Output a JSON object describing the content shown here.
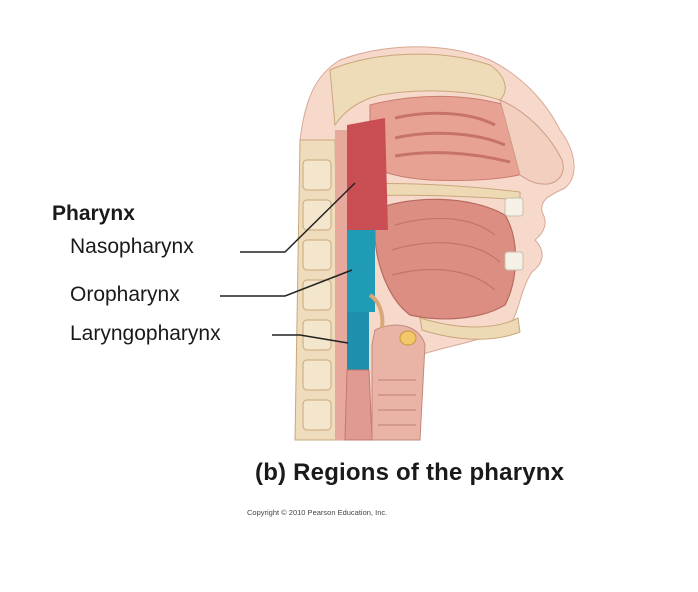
{
  "figure": {
    "heading": "Pharynx",
    "regions": [
      {
        "name": "Nasopharynx",
        "color": "#c94f55"
      },
      {
        "name": "Oropharynx",
        "color": "#1f9bb5"
      },
      {
        "name": "Laryngopharynx",
        "color": "#1f8fae"
      }
    ],
    "caption": "(b) Regions of the pharynx",
    "copyright": "Copyright © 2010 Pearson Education, Inc."
  },
  "colors": {
    "tissue": "#e9a295",
    "tissue_dark": "#cf7a6e",
    "bone": "#eed9b5",
    "skin": "#f4d2c3",
    "muscle": "#d98a80"
  }
}
